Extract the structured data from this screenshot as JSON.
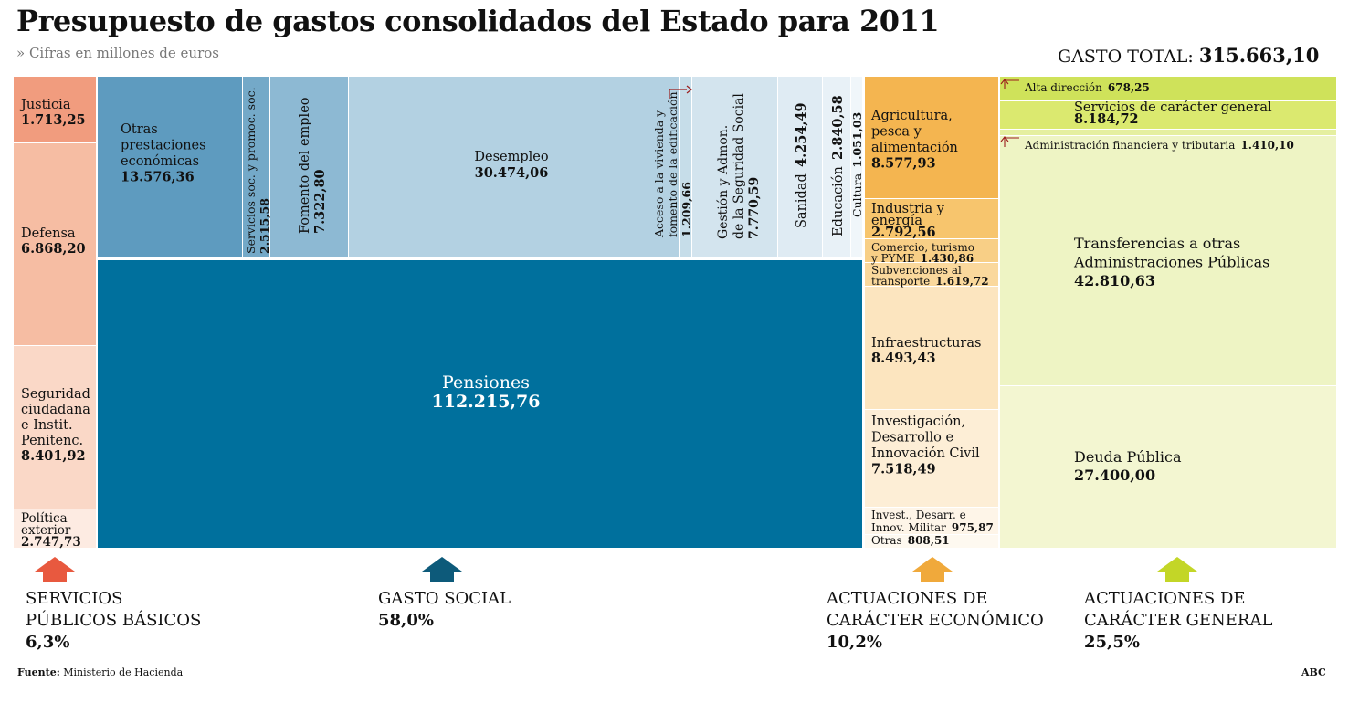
{
  "chart_data": {
    "type": "treemap",
    "title": "Presupuesto de gastos consolidados del Estado para 2011",
    "subtitle": "» Cifras en millones de euros",
    "total": {
      "label": "GASTO TOTAL:",
      "value": "315.663,10",
      "number": 315663.1
    },
    "colors": {
      "servicios": "#e8593f",
      "social": "#0d5a7a",
      "economico": "#f0a93b",
      "general": "#c3d627"
    },
    "categories": [
      {
        "key": "servicios",
        "name": "SERVICIOS PÚBLICOS BÁSICOS",
        "name_lines": [
          "SERVICIOS",
          "PÚBLICOS BÁSICOS"
        ],
        "pct": "6,3%",
        "items": [
          {
            "id": "justicia",
            "lines": [
              "Justicia"
            ],
            "value": "1.713,25",
            "number": 1713.25,
            "color": "#f19c7e"
          },
          {
            "id": "defensa",
            "lines": [
              "Defensa"
            ],
            "value": "6.868,20",
            "number": 6868.2,
            "color": "#f6bda3"
          },
          {
            "id": "seguridad",
            "lines": [
              "Seguridad",
              "ciudadana",
              "e Instit.",
              "Penitenc."
            ],
            "value": "8.401,92",
            "number": 8401.92,
            "color": "#fad8c7"
          },
          {
            "id": "politica-exterior",
            "lines": [
              "Política",
              "exterior"
            ],
            "value": "2.747,73",
            "number": 2747.73,
            "color": "#fdebe2"
          }
        ]
      },
      {
        "key": "social",
        "name": "GASTO SOCIAL",
        "name_lines": [
          "GASTO SOCIAL"
        ],
        "pct": "58,0%",
        "items": [
          {
            "id": "otras-prestaciones",
            "lines": [
              "Otras",
              "prestaciones",
              "económicas"
            ],
            "value": "13.576,36",
            "number": 13576.36,
            "color": "#5e9bbf"
          },
          {
            "id": "servicios-sociales",
            "lines": [
              "Servicios soc. y promoc. soc."
            ],
            "value": "2.515,58",
            "number": 2515.58,
            "color": "#74a9c8"
          },
          {
            "id": "fomento-empleo",
            "lines": [
              "Fomento del empleo"
            ],
            "value": "7.322,80",
            "number": 7322.8,
            "color": "#8db9d3"
          },
          {
            "id": "desempleo",
            "lines": [
              "Desempleo"
            ],
            "value": "30.474,06",
            "number": 30474.06,
            "color": "#b3d1e2"
          },
          {
            "id": "vivienda",
            "lines": [
              "Acceso a la vivienda y",
              "fomento de la edificación"
            ],
            "value": "1.209,66",
            "number": 1209.66,
            "color": "#c6dde9"
          },
          {
            "id": "gestion-ss",
            "lines": [
              "Gestión y Admon.",
              "de la Seguridad Social"
            ],
            "value": "7.770,59",
            "number": 7770.59,
            "color": "#d3e4ee"
          },
          {
            "id": "sanidad",
            "lines": [
              "Sanidad"
            ],
            "value": "4.254,49",
            "number": 4254.49,
            "color": "#dfebf3"
          },
          {
            "id": "educacion",
            "lines": [
              "Educación"
            ],
            "value": "2.840,58",
            "number": 2840.58,
            "color": "#e8f1f7"
          },
          {
            "id": "cultura",
            "lines": [
              "Cultura"
            ],
            "value": "1.051,03",
            "number": 1051.03,
            "color": "#f0f6fa"
          },
          {
            "id": "pensiones",
            "lines": [
              "Pensiones"
            ],
            "value": "112.215,76",
            "number": 112215.76,
            "color": "#00709d"
          }
        ]
      },
      {
        "key": "economico",
        "name": "ACTUACIONES DE CARÁCTER ECONÓMICO",
        "name_lines": [
          "ACTUACIONES DE",
          "CARÁCTER ECONÓMICO"
        ],
        "pct": "10,2%",
        "items": [
          {
            "id": "agricultura",
            "lines": [
              "Agricultura,",
              "pesca y",
              "alimentación"
            ],
            "value": "8.577,93",
            "number": 8577.93,
            "color": "#f4b550"
          },
          {
            "id": "industria",
            "lines": [
              "Industria y",
              "energía"
            ],
            "value": "2.792,56",
            "number": 2792.56,
            "color": "#f7c56d"
          },
          {
            "id": "comercio",
            "lines": [
              "Comercio, turismo",
              "y PYME"
            ],
            "value": "1.430,86",
            "number": 1430.86,
            "color": "#f8cf86"
          },
          {
            "id": "subvenciones",
            "lines": [
              "Subvenciones al",
              "transporte"
            ],
            "value": "1.619,72",
            "number": 1619.72,
            "color": "#fad89c"
          },
          {
            "id": "infraestructuras",
            "lines": [
              "Infraestructuras"
            ],
            "value": "8.493,43",
            "number": 8493.43,
            "color": "#fce5bf"
          },
          {
            "id": "investigacion-civil",
            "lines": [
              "Investigación,",
              "Desarrollo e",
              "Innovación Civil"
            ],
            "value": "7.518,49",
            "number": 7518.49,
            "color": "#fdeed6"
          },
          {
            "id": "investigacion-militar",
            "lines": [
              "Invest., Desarr. e",
              "Innov. Militar"
            ],
            "value": "975,87",
            "number": 975.87,
            "color": "#fef5e8"
          },
          {
            "id": "otras",
            "lines": [
              "Otras"
            ],
            "value": "808,51",
            "number": 808.51,
            "color": "#fef9f0"
          }
        ]
      },
      {
        "key": "general",
        "name": "ACTUACIONES DE CARÁCTER GENERAL",
        "name_lines": [
          "ACTUACIONES DE",
          "CARÁCTER GENERAL"
        ],
        "pct": "25,5%",
        "items": [
          {
            "id": "alta-direccion",
            "lines": [
              "Alta dirección"
            ],
            "value": "678,25",
            "number": 678.25,
            "color": "#cfe25a"
          },
          {
            "id": "servicios-generales",
            "lines": [
              "Servicios de carácter general"
            ],
            "value": "8.184,72",
            "number": 8184.72,
            "color": "#dbe96f"
          },
          {
            "id": "administracion-financiera",
            "lines": [
              "Administración financiera y tributaria"
            ],
            "value": "1.410,10",
            "number": 1410.1,
            "color": "#e5efa0"
          },
          {
            "id": "transferencias",
            "lines": [
              "Transferencias a otras",
              "Administraciones Públicas"
            ],
            "value": "42.810,63",
            "number": 42810.63,
            "color": "#eef4c4"
          },
          {
            "id": "deuda",
            "lines": [
              "Deuda Pública"
            ],
            "value": "27.400,00",
            "number": 27400.0,
            "color": "#f3f6d1"
          }
        ]
      }
    ]
  },
  "footer": {
    "source_label": "Fuente:",
    "source_text": "Ministerio de Hacienda",
    "credit": "ABC"
  }
}
